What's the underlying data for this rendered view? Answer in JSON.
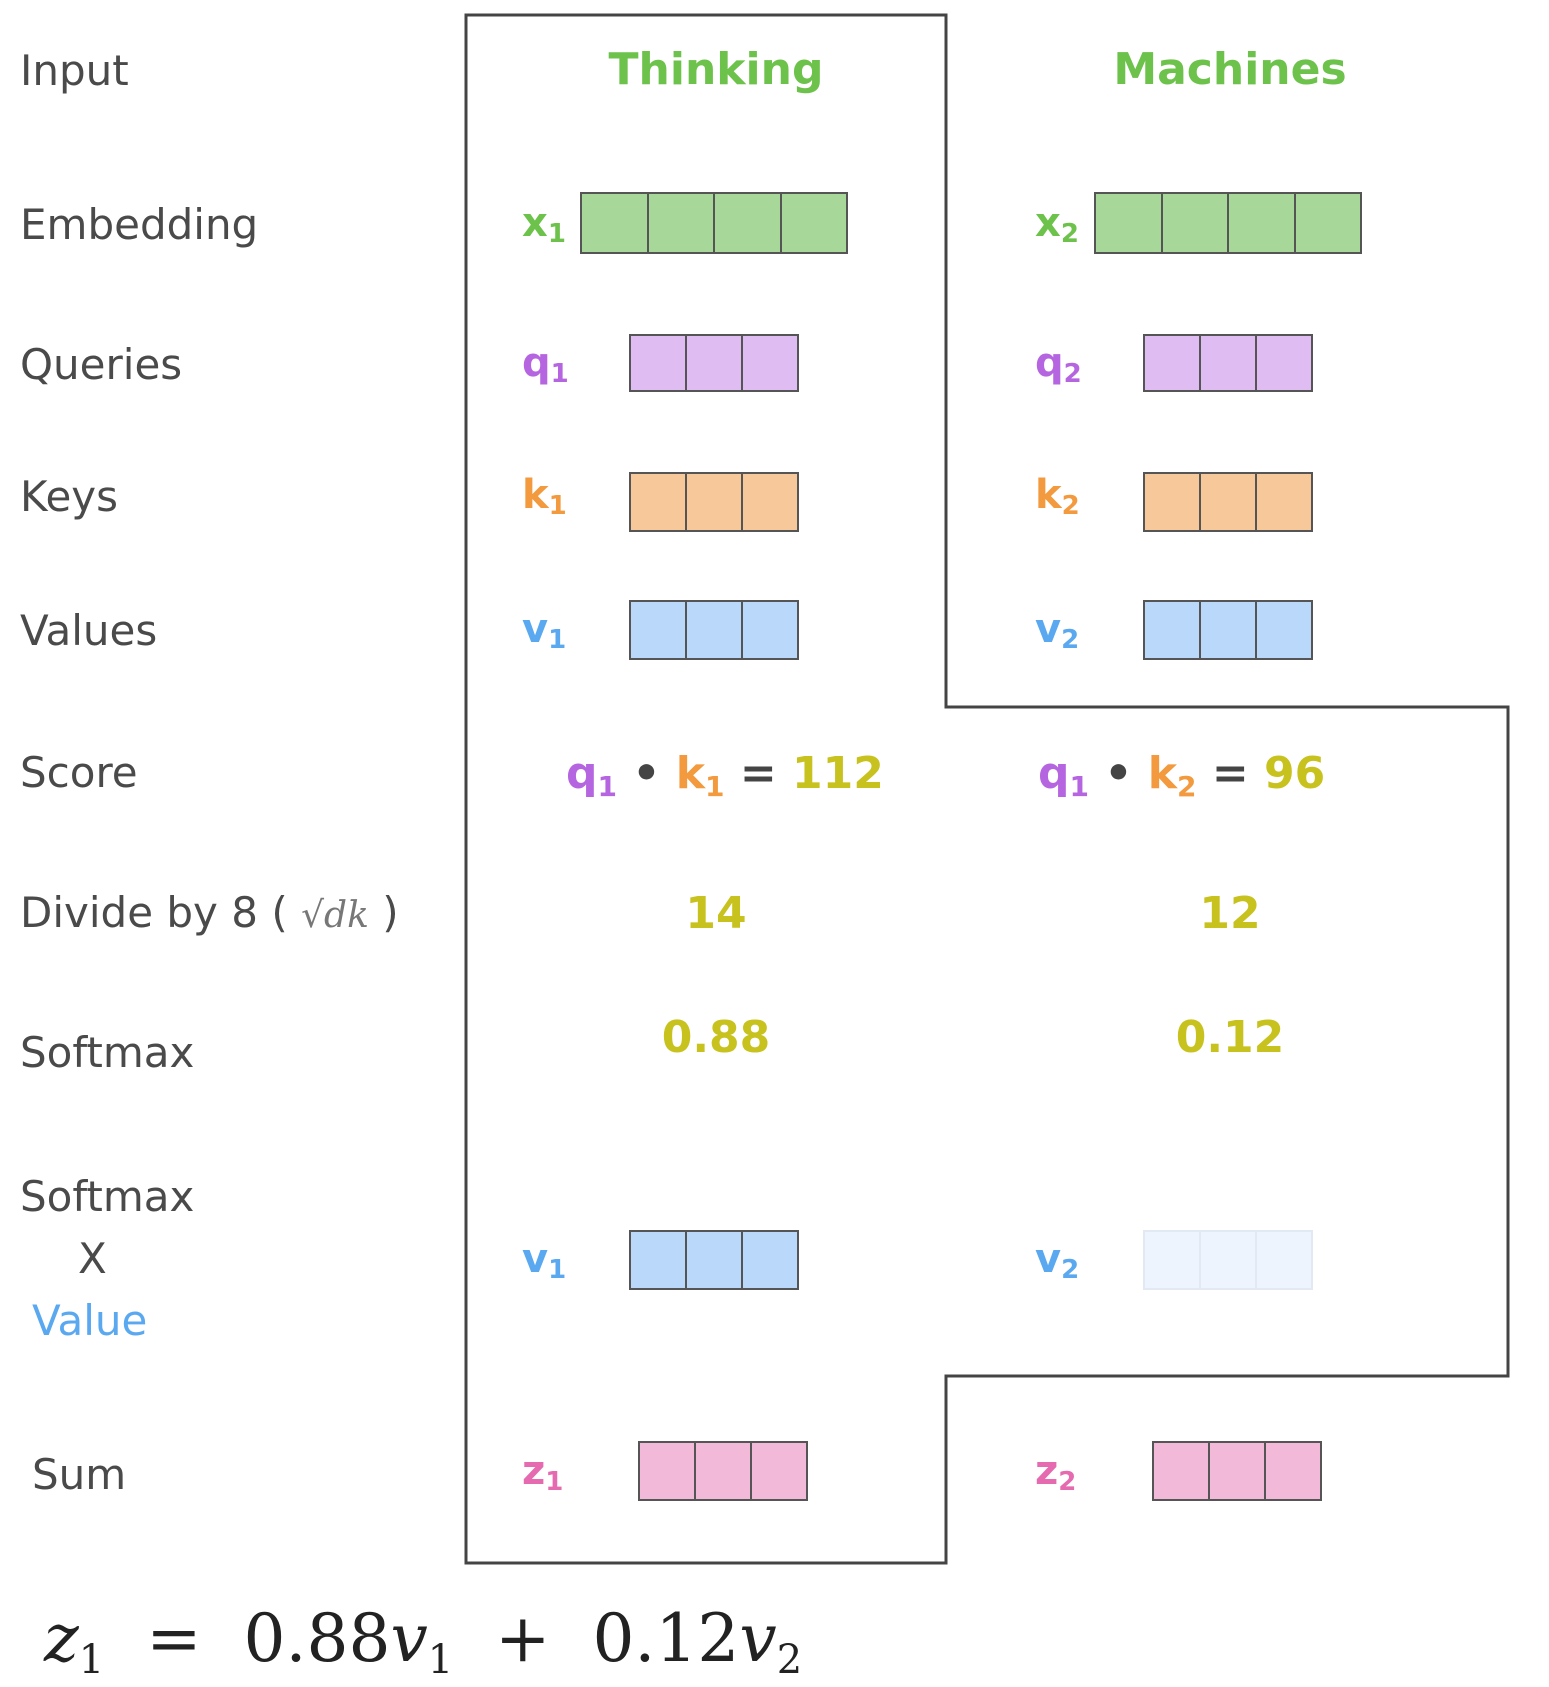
{
  "rows": {
    "input": "Input",
    "embedding": "Embedding",
    "queries": "Queries",
    "keys": "Keys",
    "values": "Values",
    "score": "Score",
    "divide_prefix": "Divide by 8 (",
    "divide_sqrt": "√dk",
    "divide_suffix": ")",
    "softmax": "Softmax",
    "sxv_line1": "Softmax",
    "sxv_line2": "X",
    "sxv_line3": "Value",
    "sum": "Sum"
  },
  "columns": [
    {
      "word": "Thinking",
      "x": "x",
      "x_sub": "1",
      "q": "q",
      "q_sub": "1",
      "k": "k",
      "k_sub": "1",
      "v": "v",
      "v_sub": "1",
      "score_q": "q",
      "score_q_sub": "1",
      "score_dot": "•",
      "score_k": "k",
      "score_k_sub": "1",
      "score_eq": "=",
      "score_val": "112",
      "divided": "14",
      "softmax": "0.88",
      "sv": "v",
      "sv_sub": "1",
      "softmax_fraction": 0.88,
      "z": "z",
      "z_sub": "1"
    },
    {
      "word": "Machines",
      "x": "x",
      "x_sub": "2",
      "q": "q",
      "q_sub": "2",
      "k": "k",
      "k_sub": "2",
      "v": "v",
      "v_sub": "2",
      "score_q": "q",
      "score_q_sub": "1",
      "score_dot": "•",
      "score_k": "k",
      "score_k_sub": "2",
      "score_eq": "=",
      "score_val": "96",
      "divided": "12",
      "softmax": "0.12",
      "sv": "v",
      "sv_sub": "2",
      "softmax_fraction": 0.12,
      "z": "z",
      "z_sub": "2"
    }
  ],
  "formula": {
    "lhs": "z",
    "lhs_sub": "1",
    "eq": "=",
    "coef1": "0.88",
    "v1": "v",
    "v1_sub": "1",
    "plus": "+",
    "coef2": "0.12",
    "v2": "v",
    "v2_sub": "2"
  },
  "colors": {
    "green": "#6cc24a",
    "green_fill": "#a8d899",
    "purple": "#b565e0",
    "purple_fill": "#dfbdf2",
    "orange": "#f29a3d",
    "orange_fill": "#f7c99a",
    "blue": "#5aa9f0",
    "blue_fill": "#b9d8fa",
    "blue_fill_faded": "#eef4fd",
    "pink": "#e56ab0",
    "pink_fill": "#f2b9d8",
    "yellow": "#c8c21e",
    "label_gray": "#4a4a4a"
  }
}
